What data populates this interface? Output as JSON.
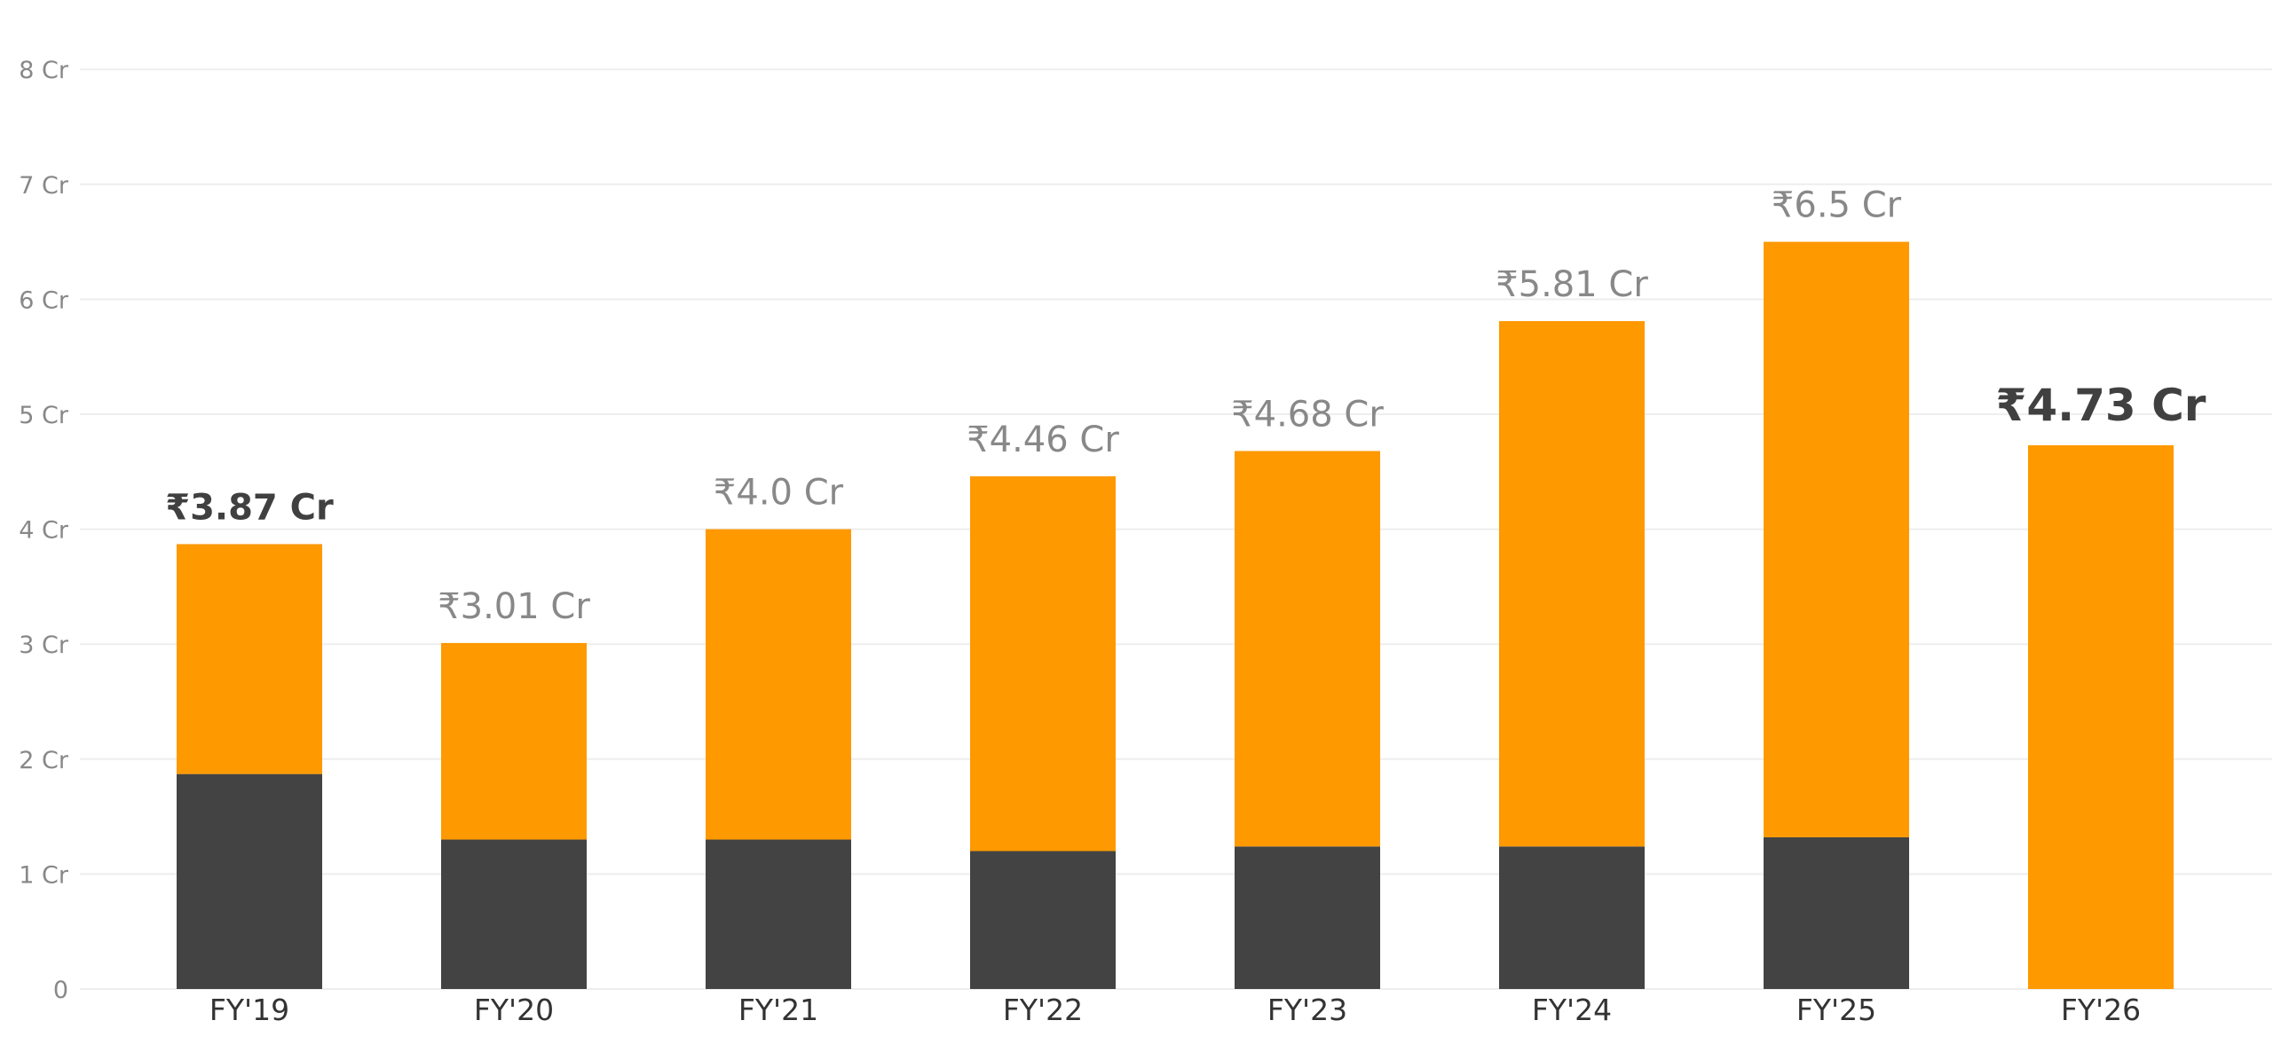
{
  "chart_data": {
    "type": "bar",
    "stacked": true,
    "categories": [
      "FY'19",
      "FY'20",
      "FY'21",
      "FY'22",
      "FY'23",
      "FY'24",
      "FY'25",
      "FY'26"
    ],
    "series": [
      {
        "values": [
          1.87,
          1.3,
          1.3,
          1.2,
          1.24,
          1.24,
          1.32,
          0
        ],
        "color": "#434343"
      },
      {
        "values": [
          2.0,
          1.71,
          2.7,
          3.26,
          3.44,
          4.57,
          5.18,
          4.73
        ],
        "color": "#FF9900"
      }
    ],
    "totals": [
      3.87,
      3.01,
      4.0,
      4.46,
      4.68,
      5.81,
      6.5,
      4.73
    ],
    "total_labels": [
      "₹3.87 Cr",
      "₹3.01 Cr",
      "₹4.0 Cr",
      "₹4.46 Cr",
      "₹4.68 Cr",
      "₹5.81 Cr",
      "₹6.5 Cr",
      "₹4.73 Cr"
    ],
    "emphasized_labels": [
      "FY'19",
      "FY'26"
    ],
    "y_ticks": [
      0,
      1,
      2,
      3,
      4,
      5,
      6,
      7,
      8
    ],
    "y_tick_labels": [
      "0",
      "1 Cr",
      "2 Cr",
      "3 Cr",
      "4 Cr",
      "5 Cr",
      "6 Cr",
      "7 Cr",
      "8 Cr"
    ],
    "ylim": [
      0,
      8
    ],
    "grid": true,
    "legend": "none"
  }
}
